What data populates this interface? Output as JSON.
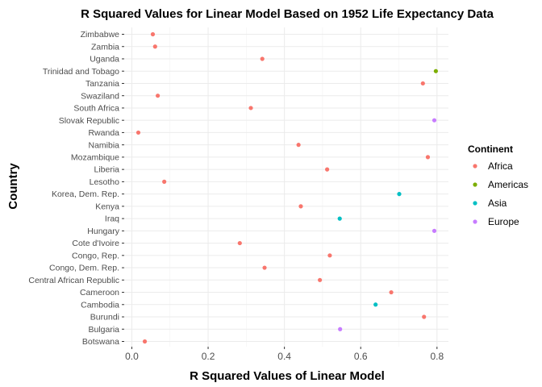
{
  "chart_data": {
    "type": "scatter",
    "title": "R Squared Values for Linear Model Based on 1952 Life Expectancy Data",
    "xlabel": "R Squared Values of Linear Model",
    "ylabel": "Country",
    "xlim": [
      -0.02,
      0.83
    ],
    "x_ticks": [
      0.0,
      0.2,
      0.4,
      0.6,
      0.8
    ],
    "x_tick_labels": [
      "0.0",
      "0.2",
      "0.4",
      "0.6",
      "0.8"
    ],
    "grid": true,
    "legend": {
      "title": "Continent",
      "position": "right",
      "entries": [
        {
          "name": "Africa",
          "color": "#F8766D"
        },
        {
          "name": "Americas",
          "color": "#7CAE00"
        },
        {
          "name": "Asia",
          "color": "#00BFC4"
        },
        {
          "name": "Europe",
          "color": "#C77CFF"
        }
      ]
    },
    "categories": [
      "Botswana",
      "Bulgaria",
      "Burundi",
      "Cambodia",
      "Cameroon",
      "Central African Republic",
      "Congo, Dem. Rep.",
      "Congo, Rep.",
      "Cote d'Ivoire",
      "Hungary",
      "Iraq",
      "Kenya",
      "Korea, Dem. Rep.",
      "Lesotho",
      "Liberia",
      "Mozambique",
      "Namibia",
      "Rwanda",
      "Slovak Republic",
      "South Africa",
      "Swaziland",
      "Tanzania",
      "Trinidad and Tobago",
      "Uganda",
      "Zambia",
      "Zimbabwe"
    ],
    "points": [
      {
        "country": "Botswana",
        "x": 0.034,
        "continent": "Africa"
      },
      {
        "country": "Bulgaria",
        "x": 0.546,
        "continent": "Europe"
      },
      {
        "country": "Burundi",
        "x": 0.766,
        "continent": "Africa"
      },
      {
        "country": "Cambodia",
        "x": 0.639,
        "continent": "Asia"
      },
      {
        "country": "Cameroon",
        "x": 0.68,
        "continent": "Africa"
      },
      {
        "country": "Central African Republic",
        "x": 0.493,
        "continent": "Africa"
      },
      {
        "country": "Congo, Dem. Rep.",
        "x": 0.348,
        "continent": "Africa"
      },
      {
        "country": "Congo, Rep.",
        "x": 0.519,
        "continent": "Africa"
      },
      {
        "country": "Cote d'Ivoire",
        "x": 0.283,
        "continent": "Africa"
      },
      {
        "country": "Hungary",
        "x": 0.793,
        "continent": "Europe"
      },
      {
        "country": "Iraq",
        "x": 0.545,
        "continent": "Asia"
      },
      {
        "country": "Kenya",
        "x": 0.443,
        "continent": "Africa"
      },
      {
        "country": "Korea, Dem. Rep.",
        "x": 0.701,
        "continent": "Asia"
      },
      {
        "country": "Lesotho",
        "x": 0.085,
        "continent": "Africa"
      },
      {
        "country": "Liberia",
        "x": 0.512,
        "continent": "Africa"
      },
      {
        "country": "Mozambique",
        "x": 0.776,
        "continent": "Africa"
      },
      {
        "country": "Namibia",
        "x": 0.437,
        "continent": "Africa"
      },
      {
        "country": "Rwanda",
        "x": 0.017,
        "continent": "Africa"
      },
      {
        "country": "Slovak Republic",
        "x": 0.793,
        "continent": "Europe"
      },
      {
        "country": "South Africa",
        "x": 0.312,
        "continent": "Africa"
      },
      {
        "country": "Swaziland",
        "x": 0.068,
        "continent": "Africa"
      },
      {
        "country": "Tanzania",
        "x": 0.763,
        "continent": "Africa"
      },
      {
        "country": "Trinidad and Tobago",
        "x": 0.797,
        "continent": "Americas"
      },
      {
        "country": "Uganda",
        "x": 0.342,
        "continent": "Africa"
      },
      {
        "country": "Zambia",
        "x": 0.061,
        "continent": "Africa"
      },
      {
        "country": "Zimbabwe",
        "x": 0.055,
        "continent": "Africa"
      }
    ]
  }
}
